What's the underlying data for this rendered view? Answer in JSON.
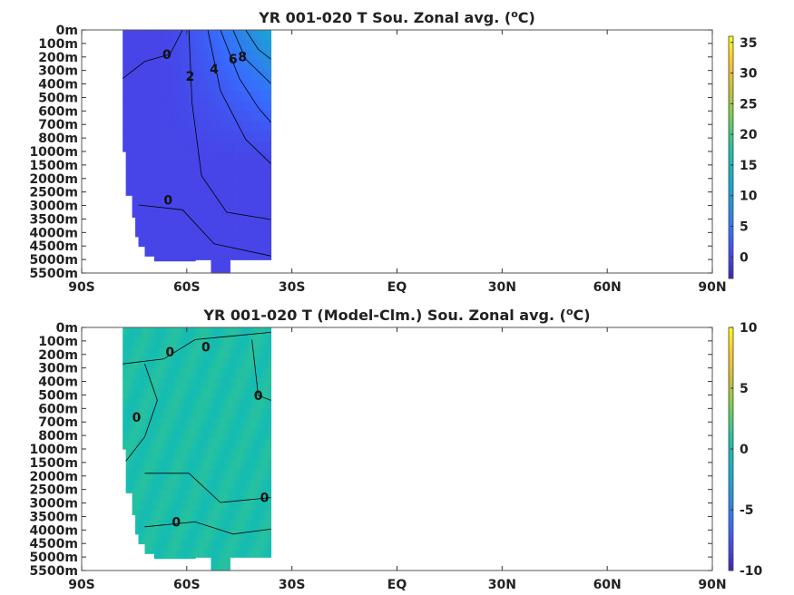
{
  "chart_data": [
    {
      "type": "heatmap",
      "title": "YR 001-020 T Sou. Zonal avg. (°C)",
      "title_main": "YR 001-020 T Sou. Zonal avg. (",
      "title_sup": "o",
      "title_tail": "C)",
      "x_tick_labels": [
        "90S",
        "60S",
        "30S",
        "EQ",
        "30N",
        "60N",
        "90N"
      ],
      "y_tick_labels": [
        "0m",
        "100m",
        "200m",
        "300m",
        "400m",
        "500m",
        "600m",
        "700m",
        "800m",
        "1000m",
        "1500m",
        "2000m",
        "2500m",
        "3000m",
        "3500m",
        "4000m",
        "4500m",
        "5000m",
        "5500m"
      ],
      "colorbar": {
        "ticks": [
          0,
          5,
          10,
          15,
          20,
          25,
          30,
          35
        ],
        "range": [
          -3.5,
          36
        ],
        "colormap": "parula"
      },
      "contour_labels": [
        "0",
        "2",
        "4",
        "6",
        "8",
        "0"
      ],
      "data_extent": {
        "lat_range": [
          "78S",
          "35S"
        ],
        "description_values": "zonal-mean temperature, cold (~0–2) at depth rising to ~8–12 near 35S surface"
      }
    },
    {
      "type": "heatmap",
      "title": "YR 001-020 T (Model-Clm.) Sou. Zonal avg. (°C)",
      "title_main": "YR 001-020 T (Model-Clm.) Sou. Zonal avg. (",
      "title_sup": "o",
      "title_tail": "C)",
      "x_tick_labels": [
        "90S",
        "60S",
        "30S",
        "EQ",
        "30N",
        "60N",
        "90N"
      ],
      "y_tick_labels": [
        "0m",
        "100m",
        "200m",
        "300m",
        "400m",
        "500m",
        "600m",
        "700m",
        "800m",
        "1000m",
        "1500m",
        "2000m",
        "2500m",
        "3000m",
        "3500m",
        "4000m",
        "4500m",
        "5000m",
        "5500m"
      ],
      "colorbar": {
        "ticks": [
          10,
          5,
          0,
          -5,
          -10
        ],
        "range": [
          -10,
          10
        ],
        "colormap": "parula"
      },
      "contour_labels": [
        "0",
        "0",
        "0",
        "0",
        "0",
        "0"
      ]
    }
  ]
}
